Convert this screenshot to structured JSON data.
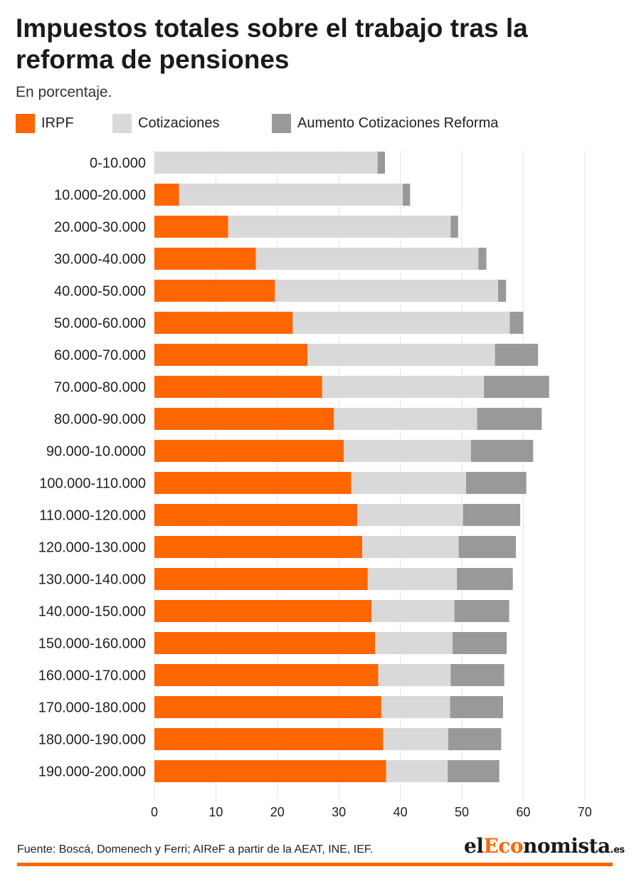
{
  "title": "Impuestos totales sobre el trabajo tras la reforma de pensiones",
  "subtitle": "En porcentaje.",
  "legend": [
    {
      "label": "IRPF",
      "color": "#ff6600"
    },
    {
      "label": "Cotizaciones",
      "color": "#d9d9d9"
    },
    {
      "label": "Aumento Cotizaciones Reforma",
      "color": "#999999"
    }
  ],
  "source": "Fuente: Boscá, Domenech y Ferri; AIReF a partir de la AEAT, INE, IEF.",
  "logo": {
    "part1": "el",
    "part2": "Eco",
    "part3": "nomista",
    "suffix": ".es"
  },
  "chart_data": {
    "type": "bar",
    "orientation": "horizontal",
    "stacked": true,
    "categories": [
      "0-10.000",
      "10.000-20.000",
      "20.000-30.000",
      "30.000-40.000",
      "40.000-50.000",
      "50.000-60.000",
      "60.000-70.000",
      "70.000-80.000",
      "80.000-90.000",
      "90.000-10.0000",
      "100.000-110.000",
      "110.000-120.000",
      "120.000-130.000",
      "130.000-140.000",
      "140.000-150.000",
      "150.000-160.000",
      "160.000-170.000",
      "170.000-180.000",
      "180.000-190.000",
      "190.000-200.000"
    ],
    "series": [
      {
        "name": "IRPF",
        "color": "#ff6600",
        "values": [
          0,
          4.0,
          12.0,
          16.5,
          19.6,
          22.5,
          24.9,
          27.3,
          29.2,
          30.8,
          32.0,
          33.0,
          33.8,
          34.7,
          35.3,
          35.9,
          36.4,
          36.9,
          37.2,
          37.7
        ]
      },
      {
        "name": "Cotizaciones",
        "color": "#d9d9d9",
        "values": [
          36.3,
          36.4,
          36.2,
          36.2,
          36.3,
          35.3,
          30.5,
          26.3,
          23.3,
          20.7,
          18.7,
          17.2,
          15.7,
          14.5,
          13.5,
          12.6,
          11.8,
          11.2,
          10.6,
          10.0
        ]
      },
      {
        "name": "Aumento Cotizaciones Reforma",
        "color": "#999999",
        "values": [
          1.2,
          1.2,
          1.2,
          1.3,
          1.3,
          2.2,
          7.0,
          10.6,
          10.5,
          10.1,
          9.8,
          9.3,
          9.3,
          9.1,
          8.9,
          8.8,
          8.7,
          8.6,
          8.6,
          8.4
        ]
      }
    ],
    "xticks": [
      0,
      10,
      20,
      30,
      40,
      50,
      60,
      70
    ],
    "xlim": [
      0,
      70
    ],
    "grid": "vertical",
    "legend_position": "top"
  }
}
